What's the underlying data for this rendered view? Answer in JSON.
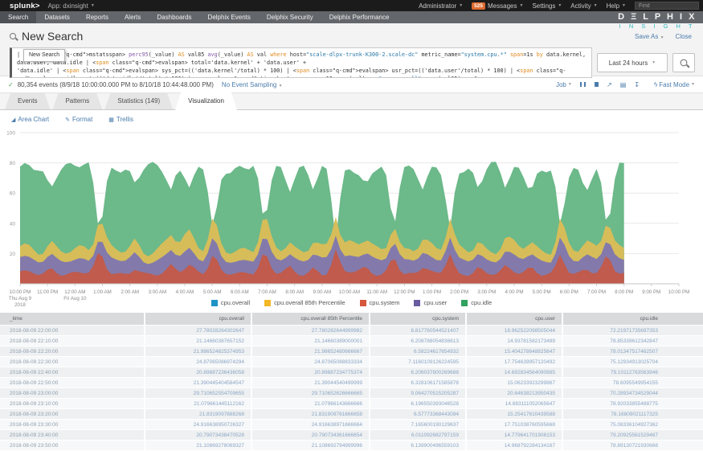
{
  "topbar": {
    "logo": "splunk>",
    "app": "App: dxinsight",
    "user_menu": "Administrator",
    "messages_badge": "525",
    "messages": "Messages",
    "settings": "Settings",
    "activity": "Activity",
    "help": "Help",
    "find_placeholder": "Find"
  },
  "brand": {
    "line1": "D Ξ L P H I X",
    "line2": "I N S I G H T"
  },
  "nav": {
    "items": [
      {
        "label": "Search",
        "active": true
      },
      {
        "label": "Datasets"
      },
      {
        "label": "Reports"
      },
      {
        "label": "Alerts"
      },
      {
        "label": "Dashboards"
      },
      {
        "label": "Delphix Events"
      },
      {
        "label": "Delphix Security"
      },
      {
        "label": "Delphix Performance"
      }
    ]
  },
  "search": {
    "title": "New Search",
    "save_as": "Save As",
    "close": "Close",
    "tooltip": "New Search",
    "time_range": "Last 24 hours",
    "query_lines": [
      "| mstats perc95(_value) AS val85 avg(_value) AS val where host=\"scale-dlpx-trunk-K300-2.scale-dc\" metric_name=\"system.cpu.*\" span=1s by data.kernel, data.user, data.idle | eval total='data.kernel' + 'data.user' +",
      "'data.idle' | eval sys_pct=(('data.kernel'/total) * 100) | eval usr_pct=(('data.user'/total) * 100) | eval idle_pct=(('data.idle'/total) * 100) | timechart span=10m avg(val) as \"cpu.overall\", avg(val85) as \"cpu",
      ".overall 85th Percentile\", avg(sys_pct) as \"cpu.system\", avg(usr_pct) as \"cpu.user\", avg(idle_pct) as \"cpu.idle\""
    ]
  },
  "results_bar": {
    "events_summary": "80,354 events (8/9/18 10:00:00.000 PM to 8/10/18 10:44:48.000 PM)",
    "sampling": "No Event Sampling",
    "job": "Job",
    "fast_mode": "Fast Mode"
  },
  "tabs": [
    {
      "label": "Events"
    },
    {
      "label": "Patterns"
    },
    {
      "label": "Statistics (149)"
    },
    {
      "label": "Visualization",
      "active": true
    }
  ],
  "viz": {
    "chart_type_label": "Area Chart",
    "format_label": "Format",
    "trellis_label": "Trellis"
  },
  "chart_data": {
    "type": "area",
    "stacked": false,
    "ylim": [
      0,
      100
    ],
    "yticks": [
      20,
      40,
      60,
      80,
      100
    ],
    "x_start": "2018-08-09 22:00",
    "x_end": "2018-08-10 22:00",
    "data_end_hour": 22,
    "x_tick_labels": [
      "10:00 PM",
      "11:00 PM",
      "12:00 AM",
      "1:00 AM",
      "2:00 AM",
      "3:00 AM",
      "4:00 AM",
      "5:00 AM",
      "6:00 AM",
      "7:00 AM",
      "8:00 AM",
      "9:00 AM",
      "10:00 AM",
      "11:00 AM",
      "12:00 PM",
      "1:00 PM",
      "2:00 PM",
      "3:00 PM",
      "4:00 PM",
      "5:00 PM",
      "6:00 PM",
      "7:00 PM",
      "8:00 PM",
      "9:00 PM",
      "10:00 PM"
    ],
    "x_sub_labels": [
      {
        "index": 0,
        "lines": [
          "Thu Aug 9",
          "2018"
        ]
      },
      {
        "index": 2,
        "lines": [
          "Fri Aug 10"
        ]
      }
    ],
    "legend_position": "bottom-center",
    "grid": "horizontal",
    "spike_hours": [
      2.9,
      7.05,
      8.9,
      11.5,
      13.6,
      15.65,
      19.7,
      21.4
    ],
    "minor_spike_hours": [
      1.1,
      4.2,
      5.5,
      6.2,
      9.8,
      10.7,
      12.6,
      14.7,
      16.7,
      17.7,
      18.6,
      20.6
    ],
    "series": [
      {
        "name": "cpu.overall",
        "color": "#1e93c6",
        "fill": "#5ba3c9",
        "spike_amp": 22,
        "values": [
          23,
          21,
          22,
          24,
          21,
          21,
          28,
          21,
          22,
          24,
          21,
          21,
          26,
          21,
          21,
          23,
          21,
          21,
          24,
          21,
          21,
          23,
          21
        ]
      },
      {
        "name": "cpu.overall 85th Percentile",
        "color": "#f2b827",
        "fill": "#d6bd59",
        "spike_amp": 23,
        "values": [
          24,
          21,
          22,
          25,
          21,
          22,
          29,
          22,
          22,
          25,
          21,
          22,
          27,
          22,
          21,
          24,
          22,
          21,
          25,
          21,
          22,
          24,
          22
        ]
      },
      {
        "name": "cpu.system",
        "color": "#d6563c",
        "fill": "#c05b4d",
        "spike_amp": 15,
        "values": [
          8,
          6,
          7,
          8,
          6,
          6,
          9,
          6,
          7,
          8,
          6,
          6,
          8,
          6,
          6,
          7,
          6,
          6,
          8,
          6,
          6,
          7,
          6
        ]
      },
      {
        "name": "cpu.user",
        "color": "#6a5c9e",
        "fill": "#837aab",
        "spike_amp": 17,
        "values": [
          17,
          15,
          15,
          17,
          15,
          15,
          19,
          15,
          15,
          17,
          15,
          15,
          18,
          15,
          15,
          16,
          15,
          15,
          17,
          15,
          15,
          16,
          15
        ]
      },
      {
        "name": "cpu.idle",
        "color": "#31a35f",
        "fill": "#6cb98a",
        "spike_amp": -46,
        "values": [
          76,
          77,
          78,
          76,
          77,
          78,
          77,
          75,
          77,
          78,
          77,
          76,
          77,
          76,
          78,
          76,
          77,
          78,
          77,
          75,
          77,
          76,
          77
        ]
      }
    ]
  },
  "table": {
    "columns": [
      "_time",
      "cpu.overall",
      "cpu.overall 85th Percentile",
      "cpu.system",
      "cpu.user",
      "cpu.idle"
    ],
    "rows": [
      [
        "2018-08-09 22:00:00",
        "27.78028264302647",
        "27.780282644999982",
        "8.817760544521407",
        "18.962522098505044",
        "72.21971735697353"
      ],
      [
        "2018-08-09 22:10:00",
        "21.14660387657152",
        "21.14660389000001",
        "6.208788054836613",
        "14.93781582173489",
        "78.85339612342847"
      ],
      [
        "2018-08-09 22:20:00",
        "21.986524825374953",
        "21.98652480666667",
        "6.58224617654932",
        "15.404278648825647",
        "78.01347517462507"
      ],
      [
        "2018-08-09 22:30:00",
        "24.87065086974294",
        "24.87065088833334",
        "7.1160109126224595",
        "17.754639957120492",
        "75.12934913025704"
      ],
      [
        "2018-08-09 22:40:00",
        "20.89887236436058",
        "20.89887234775374",
        "6.206037800269688",
        "14.692834564090885",
        "79.10112763563946"
      ],
      [
        "2018-08-09 22:50:00",
        "21.390445404584547",
        "21.39044540499999",
        "6.328106171585878",
        "15.06233923299867",
        "78.6095549954155"
      ],
      [
        "2018-08-09 23:00:00",
        "29.710652554709655",
        "29.710652626666665",
        "9.064270515205287",
        "20.64638213950435",
        "70.28934734529044"
      ],
      [
        "2018-08-09 23:10:00",
        "21.079661445112162",
        "21.07966143666666",
        "6.196550393046528",
        "14.883111052065647",
        "78.92033855488775"
      ],
      [
        "2018-08-09 23:20:00",
        "21.8319097888268",
        "21.831909761666658",
        "6.57773368443094",
        "15.25417610439588",
        "78.16809021117325"
      ],
      [
        "2018-08-09 23:30:00",
        "24.916638950726327",
        "24.916638971666664",
        "7.165600190129637",
        "17.751038760595668",
        "75.08336104927362"
      ],
      [
        "2018-08-09 23:40:00",
        "20.79073438470528",
        "20.790734361666654",
        "6.011092682797159",
        "14.779641701908153",
        "79.20925561529467"
      ],
      [
        "2018-08-09 23:50:00",
        "21.10869278069327",
        "21.108692794999996",
        "6.139900496559103",
        "14.968792284134167",
        "78.89130721930668"
      ]
    ]
  }
}
